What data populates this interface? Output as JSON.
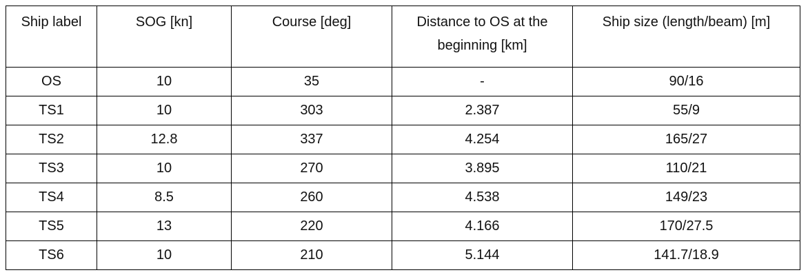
{
  "table": {
    "header": [
      "Ship label",
      "SOG [kn]",
      "Course [deg]",
      "Distance to OS at the beginning [km]",
      "Ship size (length/beam) [m]"
    ],
    "rows": [
      [
        "OS",
        "10",
        "35",
        "-",
        "90/16"
      ],
      [
        "TS1",
        "10",
        "303",
        "2.387",
        "55/9"
      ],
      [
        "TS2",
        "12.8",
        "337",
        "4.254",
        "165/27"
      ],
      [
        "TS3",
        "10",
        "270",
        "3.895",
        "110/21"
      ],
      [
        "TS4",
        "8.5",
        "260",
        "4.538",
        "149/23"
      ],
      [
        "TS5",
        "13",
        "220",
        "4.166",
        "170/27.5"
      ],
      [
        "TS6",
        "10",
        "210",
        "5.144",
        "141.7/18.9"
      ]
    ]
  }
}
